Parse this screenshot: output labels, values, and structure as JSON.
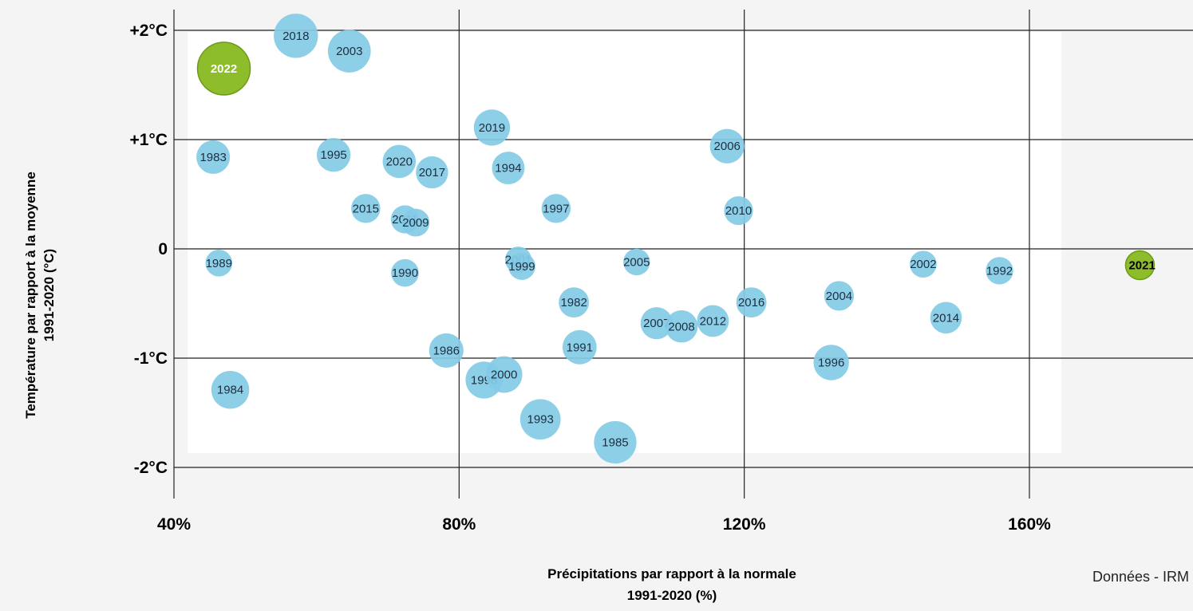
{
  "chart_data": {
    "type": "scatter",
    "xlabel": [
      "Précipitations par rapport à la normale",
      "1991-2020 (%)"
    ],
    "ylabel": [
      "Température par rapport à la moyenne",
      "1991-2020 (°C)"
    ],
    "x_ticks": [
      "40%",
      "80%",
      "120%",
      "160%"
    ],
    "x_tick_values": [
      40,
      80,
      120,
      160
    ],
    "y_ticks": [
      "+2°C",
      "+1°C",
      "0",
      "-1°C",
      "-2°C"
    ],
    "y_tick_values": [
      2,
      1,
      0,
      -1,
      -2
    ],
    "xlim": [
      40,
      175
    ],
    "ylim": [
      -2.1,
      2.2
    ],
    "grid": true,
    "colors": {
      "normal": "#84cbe6",
      "highlight": "#8dbd2a",
      "grid": "#222222"
    },
    "points": [
      {
        "year": "2018",
        "x": 57.1,
        "y": 1.95,
        "highlight": false
      },
      {
        "year": "2003",
        "x": 64.6,
        "y": 1.81,
        "highlight": false
      },
      {
        "year": "2022",
        "x": 47.0,
        "y": 1.65,
        "highlight": true
      },
      {
        "year": "2019",
        "x": 84.6,
        "y": 1.11,
        "highlight": false
      },
      {
        "year": "2006",
        "x": 117.6,
        "y": 0.94,
        "highlight": false
      },
      {
        "year": "1983",
        "x": 45.5,
        "y": 0.84,
        "highlight": false
      },
      {
        "year": "1995",
        "x": 62.4,
        "y": 0.86,
        "highlight": false
      },
      {
        "year": "2020",
        "x": 71.6,
        "y": 0.8,
        "highlight": false
      },
      {
        "year": "2017",
        "x": 76.2,
        "y": 0.7,
        "highlight": false
      },
      {
        "year": "1994",
        "x": 86.9,
        "y": 0.74,
        "highlight": false
      },
      {
        "year": "2015",
        "x": 66.9,
        "y": 0.37,
        "highlight": false
      },
      {
        "year": "2011",
        "x": 72.4,
        "y": 0.27,
        "highlight": false
      },
      {
        "year": "2009",
        "x": 73.9,
        "y": 0.24,
        "highlight": false
      },
      {
        "year": "1997",
        "x": 93.6,
        "y": 0.37,
        "highlight": false
      },
      {
        "year": "2010",
        "x": 119.2,
        "y": 0.35,
        "highlight": false
      },
      {
        "year": "1989",
        "x": 46.3,
        "y": -0.13,
        "highlight": false
      },
      {
        "year": "1990",
        "x": 72.4,
        "y": -0.22,
        "highlight": false
      },
      {
        "year": "2001",
        "x": 88.3,
        "y": -0.1,
        "highlight": false
      },
      {
        "year": "1999",
        "x": 88.8,
        "y": -0.16,
        "highlight": false
      },
      {
        "year": "2005",
        "x": 104.9,
        "y": -0.12,
        "highlight": false
      },
      {
        "year": "2002",
        "x": 145.1,
        "y": -0.14,
        "highlight": false
      },
      {
        "year": "1992",
        "x": 155.8,
        "y": -0.2,
        "highlight": false
      },
      {
        "year": "2021",
        "x": 175.5,
        "y": -0.15,
        "highlight": true
      },
      {
        "year": "1982",
        "x": 96.1,
        "y": -0.49,
        "highlight": false
      },
      {
        "year": "2016",
        "x": 121.0,
        "y": -0.49,
        "highlight": false
      },
      {
        "year": "2004",
        "x": 133.3,
        "y": -0.43,
        "highlight": false
      },
      {
        "year": "2007",
        "x": 107.7,
        "y": -0.68,
        "highlight": false
      },
      {
        "year": "2008",
        "x": 111.2,
        "y": -0.71,
        "highlight": false
      },
      {
        "year": "2012",
        "x": 115.6,
        "y": -0.66,
        "highlight": false
      },
      {
        "year": "2014",
        "x": 148.3,
        "y": -0.63,
        "highlight": false
      },
      {
        "year": "1986",
        "x": 78.2,
        "y": -0.93,
        "highlight": false
      },
      {
        "year": "1991",
        "x": 96.9,
        "y": -0.9,
        "highlight": false
      },
      {
        "year": "1996",
        "x": 132.2,
        "y": -1.04,
        "highlight": false
      },
      {
        "year": "1984",
        "x": 47.9,
        "y": -1.29,
        "highlight": false
      },
      {
        "year": "1998",
        "x": 83.5,
        "y": -1.2,
        "highlight": false
      },
      {
        "year": "2000",
        "x": 86.3,
        "y": -1.15,
        "highlight": false
      },
      {
        "year": "1993",
        "x": 91.4,
        "y": -1.56,
        "highlight": false
      },
      {
        "year": "1985",
        "x": 101.9,
        "y": -1.77,
        "highlight": false
      }
    ]
  },
  "source_label": "Données - IRM"
}
